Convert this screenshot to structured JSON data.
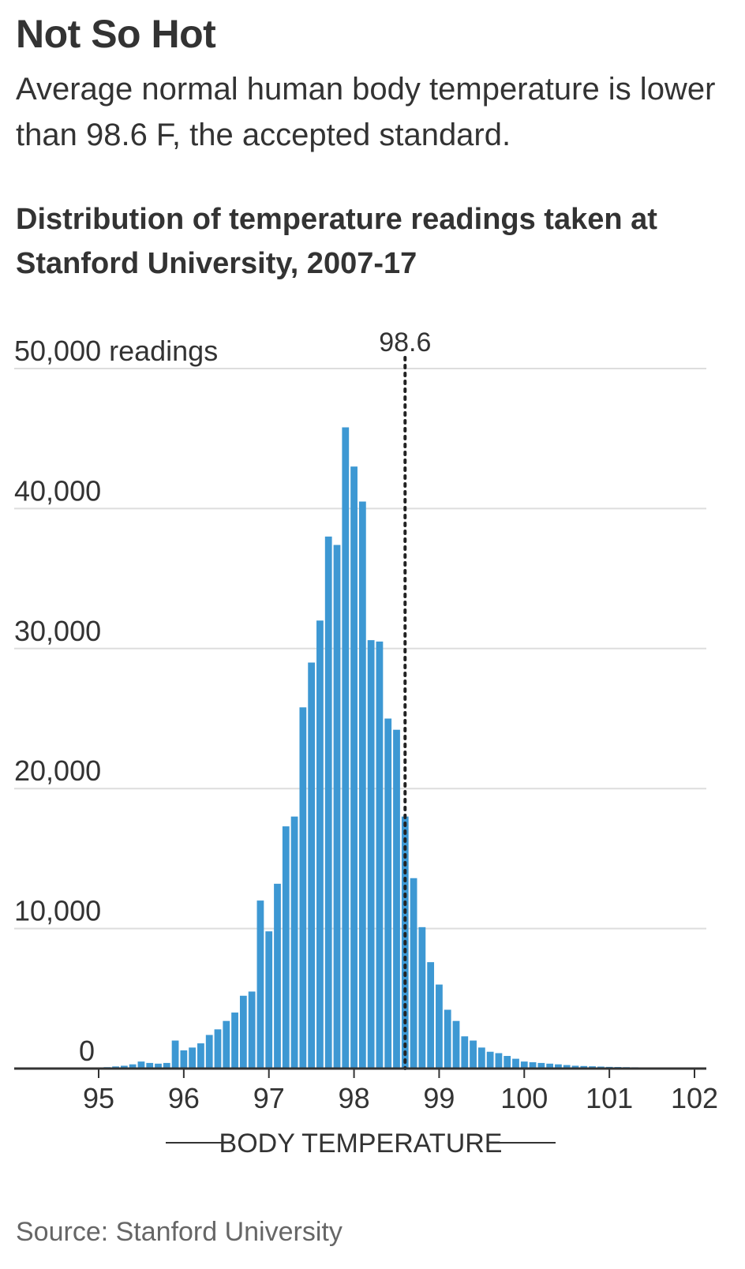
{
  "headline": "Not So Hot",
  "dek": "Average normal human body temperature is lower than 98.6 F, the accepted standard.",
  "chart_title": "Distribution of temperature readings taken at Stanford University, 2007-17",
  "source": "Source: Stanford University",
  "colors": {
    "bar": "#3d98d3",
    "grid": "#dddddd",
    "axis": "#333333",
    "text": "#333333"
  },
  "chart_data": {
    "type": "bar",
    "title": "Distribution of temperature readings taken at Stanford University, 2007-17",
    "xlabel": "BODY TEMPERATURE",
    "ylabel": "",
    "y_unit_label": "readings",
    "xlim": [
      94.9,
      102.1
    ],
    "ylim": [
      0,
      50000
    ],
    "x_ticks": [
      95,
      96,
      97,
      98,
      99,
      100,
      101,
      102
    ],
    "x_tick_labels": [
      "95",
      "96",
      "97",
      "98",
      "99",
      "100",
      "101",
      "102"
    ],
    "y_ticks": [
      0,
      10000,
      20000,
      30000,
      40000,
      50000
    ],
    "y_tick_labels": [
      "0",
      "10,000",
      "20,000",
      "30,000",
      "40,000",
      "50,000"
    ],
    "grid": true,
    "reference_line": {
      "x": 98.6,
      "label": "98.6",
      "style": "dotted"
    },
    "bin_width": 0.1,
    "x": [
      95.0,
      95.1,
      95.2,
      95.3,
      95.4,
      95.5,
      95.6,
      95.7,
      95.8,
      95.9,
      96.0,
      96.1,
      96.2,
      96.3,
      96.4,
      96.5,
      96.6,
      96.7,
      96.8,
      96.9,
      97.0,
      97.1,
      97.2,
      97.3,
      97.4,
      97.5,
      97.6,
      97.7,
      97.8,
      97.9,
      98.0,
      98.1,
      98.2,
      98.3,
      98.4,
      98.5,
      98.6,
      98.7,
      98.8,
      98.9,
      99.0,
      99.1,
      99.2,
      99.3,
      99.4,
      99.5,
      99.6,
      99.7,
      99.8,
      99.9,
      100.0,
      100.1,
      100.2,
      100.3,
      100.4,
      100.5,
      100.6,
      100.7,
      100.8,
      100.9,
      101.0,
      101.1,
      101.2,
      101.3,
      101.4,
      101.5,
      101.6,
      101.7,
      101.8,
      101.9,
      102.0
    ],
    "values": [
      50,
      100,
      150,
      200,
      300,
      500,
      400,
      350,
      400,
      2000,
      1300,
      1500,
      1800,
      2400,
      2800,
      3400,
      4000,
      5200,
      5500,
      12000,
      9800,
      13200,
      17300,
      18000,
      25800,
      29000,
      32000,
      38000,
      37400,
      45800,
      43000,
      40500,
      30600,
      30500,
      25000,
      24200,
      18000,
      13600,
      10100,
      7600,
      6000,
      4200,
      3400,
      2300,
      2000,
      1500,
      1200,
      1100,
      900,
      700,
      500,
      450,
      400,
      350,
      300,
      250,
      200,
      180,
      160,
      140,
      120,
      110,
      100,
      90,
      80,
      70,
      60,
      50,
      45,
      40,
      40
    ]
  }
}
